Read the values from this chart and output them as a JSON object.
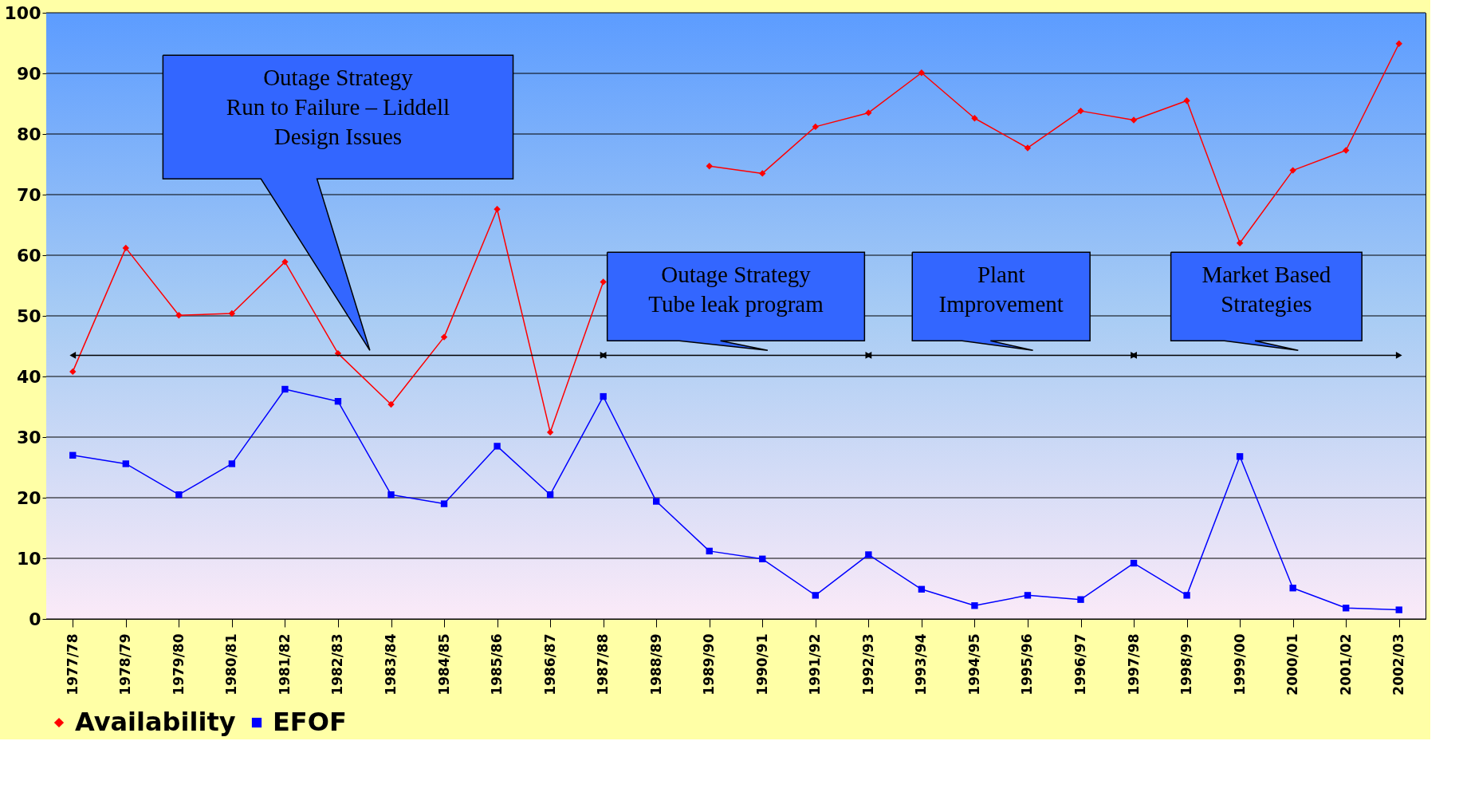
{
  "chart_data": {
    "type": "line",
    "categories": [
      "1977/78",
      "1978/79",
      "1979/80",
      "1980/81",
      "1981/82",
      "1982/83",
      "1983/84",
      "1984/85",
      "1985/86",
      "1986/87",
      "1987/88",
      "1988/89",
      "1989/90",
      "1990/91",
      "1991/92",
      "1992/93",
      "1993/94",
      "1994/95",
      "1995/96",
      "1996/97",
      "1997/98",
      "1998/99",
      "1999/00",
      "2000/01",
      "2001/02",
      "2002/03"
    ],
    "series": [
      {
        "name": "Availability",
        "color": "#ff0000",
        "marker": "diamond",
        "values": [
          40.8,
          61.2,
          50.1,
          50.4,
          58.9,
          43.8,
          35.4,
          46.5,
          67.6,
          30.8,
          55.6,
          null,
          74.7,
          73.5,
          81.2,
          83.5,
          90.1,
          82.6,
          77.7,
          83.8,
          82.3,
          85.5,
          62,
          74.0,
          77.3,
          94.9
        ]
      },
      {
        "name": "EFOF",
        "color": "#0000ff",
        "marker": "square",
        "values": [
          27.0,
          25.6,
          20.5,
          25.6,
          37.9,
          35.9,
          20.5,
          19.0,
          28.5,
          20.5,
          36.7,
          19.4,
          11.2,
          9.9,
          3.9,
          10.6,
          4.9,
          2.2,
          3.9,
          3.2,
          9.2,
          3.9,
          26.8,
          5.1,
          1.8,
          1.5
        ]
      }
    ],
    "ylim": [
      0,
      100
    ],
    "yticks": [
      0,
      10,
      20,
      30,
      40,
      50,
      60,
      70,
      80,
      90,
      100
    ],
    "grid": "y",
    "legend": "bottom",
    "annotations": [
      "Outage Strategy\nRun to Failure – Liddell\nDesign Issues",
      "Outage Strategy\nTube leak program",
      "Plant\nImprovement",
      "Market Based\nStrategies"
    ]
  }
}
